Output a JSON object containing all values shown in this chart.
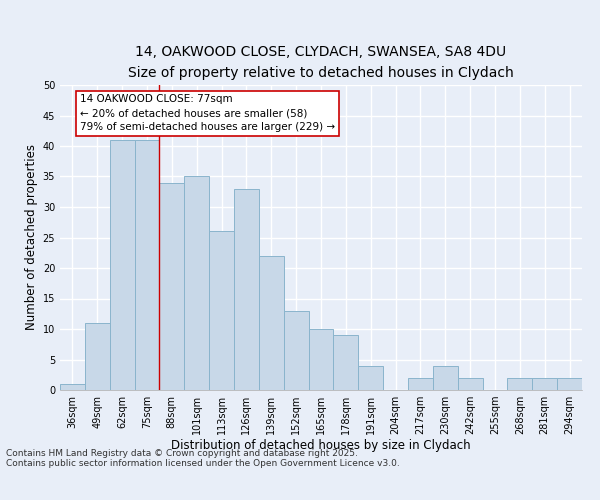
{
  "title_line1": "14, OAKWOOD CLOSE, CLYDACH, SWANSEA, SA8 4DU",
  "title_line2": "Size of property relative to detached houses in Clydach",
  "xlabel": "Distribution of detached houses by size in Clydach",
  "ylabel": "Number of detached properties",
  "categories": [
    "36sqm",
    "49sqm",
    "62sqm",
    "75sqm",
    "88sqm",
    "101sqm",
    "113sqm",
    "126sqm",
    "139sqm",
    "152sqm",
    "165sqm",
    "178sqm",
    "191sqm",
    "204sqm",
    "217sqm",
    "230sqm",
    "242sqm",
    "255sqm",
    "268sqm",
    "281sqm",
    "294sqm"
  ],
  "values": [
    1,
    11,
    41,
    41,
    34,
    35,
    26,
    33,
    22,
    13,
    10,
    9,
    4,
    0,
    2,
    4,
    2,
    0,
    2,
    2,
    2
  ],
  "bar_color": "#c8d8e8",
  "bar_edge_color": "#8ab4cc",
  "vline_x": 3.5,
  "vline_color": "#cc0000",
  "annotation_text": "14 OAKWOOD CLOSE: 77sqm\n← 20% of detached houses are smaller (58)\n79% of semi-detached houses are larger (229) →",
  "annotation_box_color": "#ffffff",
  "annotation_box_edge": "#cc0000",
  "ylim": [
    0,
    50
  ],
  "yticks": [
    0,
    5,
    10,
    15,
    20,
    25,
    30,
    35,
    40,
    45,
    50
  ],
  "bg_color": "#e8eef8",
  "plot_bg_color": "#e8eef8",
  "grid_color": "#ffffff",
  "footer_line1": "Contains HM Land Registry data © Crown copyright and database right 2025.",
  "footer_line2": "Contains public sector information licensed under the Open Government Licence v3.0.",
  "title_fontsize": 10,
  "subtitle_fontsize": 9,
  "axis_label_fontsize": 8.5,
  "tick_fontsize": 7,
  "annotation_fontsize": 7.5,
  "footer_fontsize": 6.5
}
